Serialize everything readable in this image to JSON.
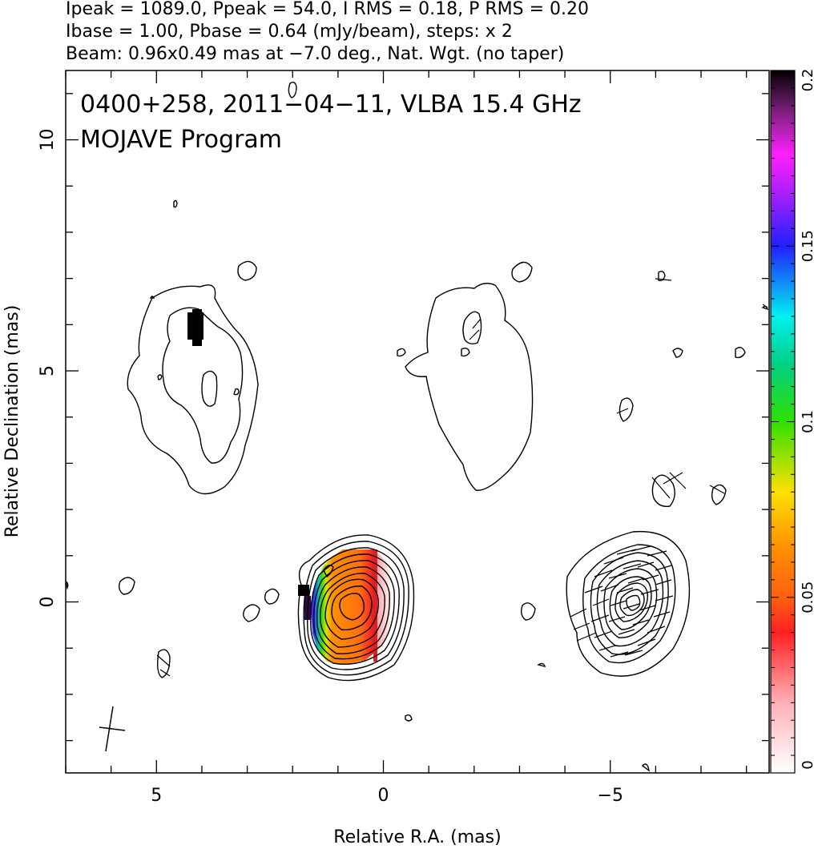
{
  "header": {
    "line1": "Ipeak = 1089.0, Ppeak = 54.0, I RMS = 0.18, P RMS = 0.20",
    "line2": "Ibase = 1.00, Pbase = 0.64 (mJy/beam), steps: x 2",
    "line3": "Beam: 0.96x0.49 mas at −7.0 deg., Nat. Wgt. (no taper)"
  },
  "overlay": {
    "line1": "0400+258, 2011−04−11, VLBA 15.4 GHz",
    "line2": "MOJAVE Program"
  },
  "chart_data": {
    "type": "heatmap",
    "subtype": "radio contour map with polarization color overlay",
    "xlabel": "Relative R.A. (mas)",
    "ylabel": "Relative Declination (mas)",
    "xlim": [
      7.0,
      -8.5
    ],
    "ylim": [
      -3.7,
      11.5
    ],
    "x_axis_reversed": true,
    "x_ticks": [
      {
        "value": 5,
        "label": "5"
      },
      {
        "value": 0,
        "label": "0"
      },
      {
        "value": -5,
        "label": "−5"
      }
    ],
    "y_ticks": [
      {
        "value": 0,
        "label": "0"
      },
      {
        "value": 5,
        "label": "5"
      },
      {
        "value": 10,
        "label": "10"
      }
    ],
    "colorbar": {
      "range": [
        0,
        0.2
      ],
      "ticks": [
        {
          "value": 0,
          "label": "0"
        },
        {
          "value": 0.05,
          "label": "0.05"
        },
        {
          "value": 0.1,
          "label": "0.1"
        },
        {
          "value": 0.15,
          "label": "0.15"
        },
        {
          "value": 0.2,
          "label": "0.2"
        }
      ],
      "colormap": "white-pink-red-orange-yellow-green-cyan-blue-magenta-black"
    },
    "components": [
      {
        "x": 0.6,
        "y": -0.1,
        "type": "core",
        "contour_levels": 10
      },
      {
        "x": -5.2,
        "y": 0.0,
        "type": "compact",
        "contour_levels": 10
      },
      {
        "x": 4.0,
        "y": 4.6,
        "type": "extended",
        "contour_levels": 2
      },
      {
        "x": -1.8,
        "y": 4.7,
        "type": "extended",
        "contour_levels": 1
      }
    ],
    "beam": {
      "major_mas": 0.96,
      "minor_mas": 0.49,
      "pa_deg": -7.0
    }
  }
}
